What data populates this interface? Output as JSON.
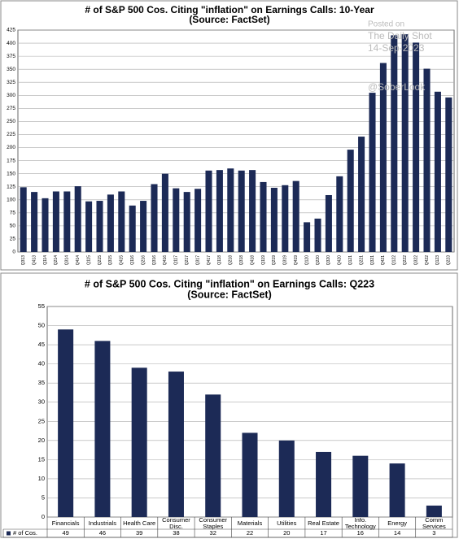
{
  "chart_data": [
    {
      "type": "bar",
      "title": "# of S&P 500 Cos. Citing \"inflation\" on Earnings Calls: 10-Year",
      "subtitle": "(Source: FactSet)",
      "categories": [
        "Q313",
        "Q413",
        "Q114",
        "Q214",
        "Q314",
        "Q414",
        "Q115",
        "Q215",
        "Q315",
        "Q415",
        "Q116",
        "Q216",
        "Q316",
        "Q416",
        "Q117",
        "Q217",
        "Q317",
        "Q417",
        "Q118",
        "Q218",
        "Q318",
        "Q418",
        "Q119",
        "Q219",
        "Q319",
        "Q419",
        "Q120",
        "Q220",
        "Q320",
        "Q420",
        "Q121",
        "Q221",
        "Q321",
        "Q421",
        "Q122",
        "Q222",
        "Q322",
        "Q422",
        "Q123",
        "Q223"
      ],
      "values": [
        124,
        115,
        103,
        116,
        116,
        126,
        97,
        98,
        110,
        116,
        89,
        98,
        130,
        150,
        122,
        115,
        121,
        156,
        157,
        160,
        156,
        157,
        134,
        123,
        128,
        136,
        57,
        64,
        109,
        145,
        196,
        221,
        305,
        362,
        415,
        417,
        401,
        351,
        307,
        296
      ],
      "color": "#1c2a56",
      "ylim": [
        0,
        425
      ],
      "yticks": [
        0,
        25,
        50,
        75,
        100,
        125,
        150,
        175,
        200,
        225,
        250,
        275,
        300,
        325,
        350,
        375,
        400,
        425
      ],
      "grid": true,
      "watermark": [
        "Posted on",
        "The Daily Shot",
        "14-Sep-2023",
        "@SoberLook"
      ]
    },
    {
      "type": "bar",
      "title": "# of S&P 500 Cos. Citing \"inflation\" on Earnings Calls: Q223",
      "subtitle": "(Source: FactSet)",
      "categories": [
        "Financials",
        "Industrials",
        "Health Care",
        "Consumer\nDisc.",
        "Consumer\nStaples",
        "Materials",
        "Utilities",
        "Real Estate",
        "Info.\nTechnology",
        "Energy",
        "Comm\nServices"
      ],
      "series": [
        {
          "name": "# of Cos.",
          "color": "#1c2a56",
          "values": [
            49,
            46,
            39,
            38,
            32,
            22,
            20,
            17,
            16,
            14,
            3
          ]
        }
      ],
      "ylim": [
        0,
        55
      ],
      "yticks": [
        0,
        5,
        10,
        15,
        20,
        25,
        30,
        35,
        40,
        45,
        50,
        55
      ],
      "grid": true,
      "data_table": true
    }
  ]
}
